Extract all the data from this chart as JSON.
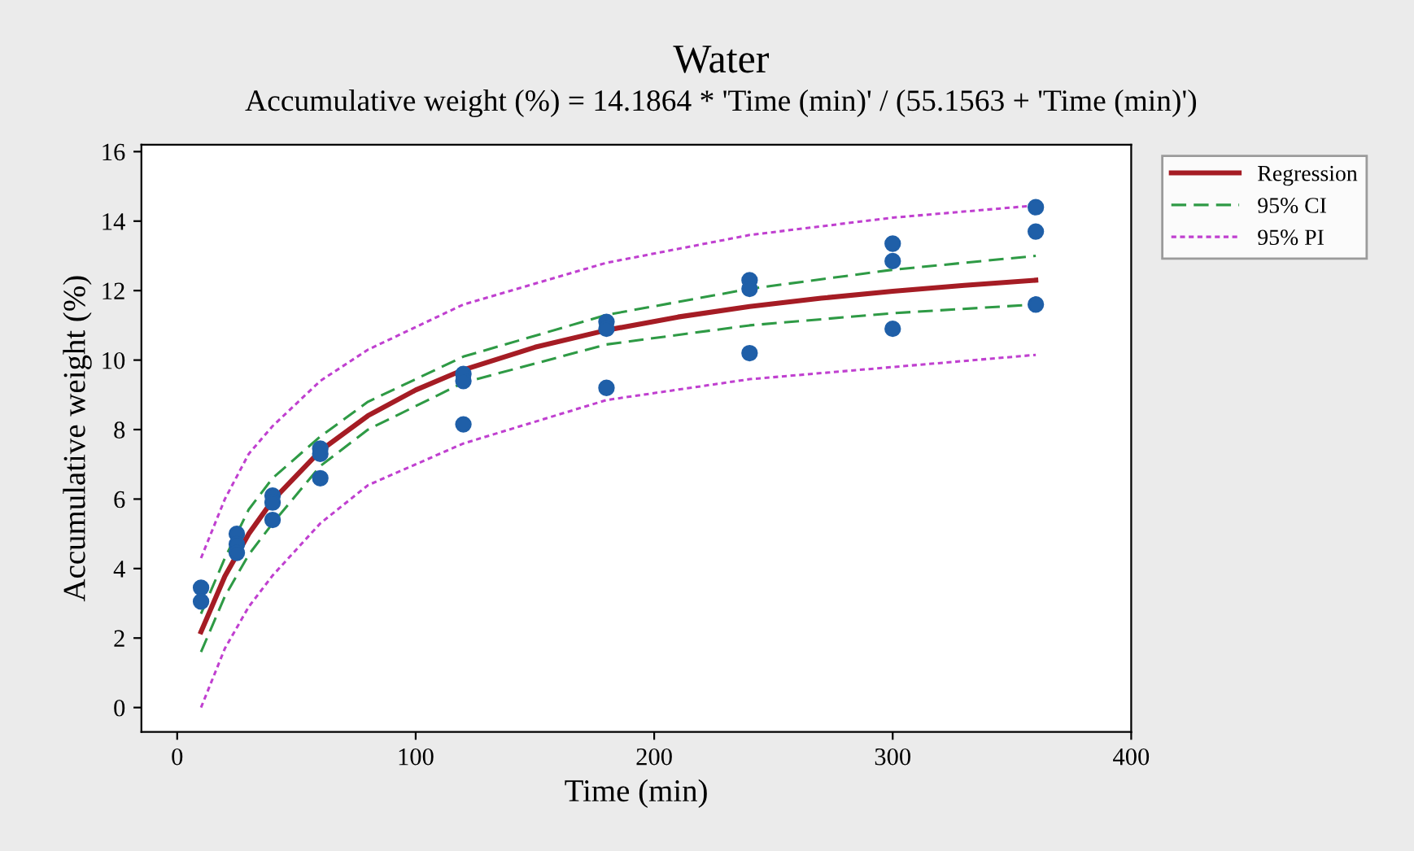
{
  "chart_data": {
    "type": "line",
    "title": "Water",
    "subtitle": "Accumulative weight (%) = 14.1864 * 'Time (min)' / (55.1563 + 'Time (min)')",
    "xlabel": "Time (min)",
    "ylabel": "Accumulative weight (%)",
    "xlim": [
      -15,
      400
    ],
    "ylim": [
      -0.7,
      16.2
    ],
    "xticks": [
      0,
      100,
      200,
      300,
      400
    ],
    "yticks": [
      0,
      2,
      4,
      6,
      8,
      10,
      12,
      14,
      16
    ],
    "grid": false,
    "legend": "right",
    "series": [
      {
        "type": "scatter",
        "color": "#1f5fa8",
        "marker": "circle",
        "x": [
          10,
          10,
          25,
          25,
          25,
          40,
          40,
          40,
          60,
          60,
          60,
          120,
          120,
          120,
          180,
          180,
          180,
          240,
          240,
          240,
          300,
          300,
          300,
          360,
          360,
          360
        ],
        "values": [
          3.45,
          3.05,
          5.0,
          4.7,
          4.45,
          6.1,
          5.9,
          5.4,
          7.45,
          7.3,
          6.6,
          9.6,
          9.4,
          8.15,
          11.1,
          10.9,
          9.2,
          12.3,
          12.05,
          10.2,
          13.35,
          12.85,
          10.9,
          14.4,
          13.7,
          11.6
        ]
      },
      {
        "name": "Regression",
        "color": "#a51c24",
        "line_style": "solid",
        "x": [
          10,
          20,
          30,
          40,
          60,
          80,
          100,
          120,
          150,
          180,
          210,
          240,
          270,
          300,
          330,
          360
        ],
        "values": [
          2.18,
          3.78,
          5.0,
          5.96,
          7.39,
          8.4,
          9.14,
          9.72,
          10.37,
          10.86,
          11.24,
          11.54,
          11.78,
          11.98,
          12.15,
          12.3
        ]
      },
      {
        "name": "95% CI",
        "color": "#2e9a45",
        "line_style": "dashed",
        "x": [
          10,
          20,
          30,
          40,
          60,
          80,
          120,
          180,
          240,
          300,
          360
        ],
        "values": [
          2.7,
          4.3,
          5.7,
          6.6,
          7.8,
          8.8,
          10.1,
          11.3,
          12.05,
          12.6,
          13.0
        ]
      },
      {
        "color": "#2e9a45",
        "line_style": "dashed",
        "x": [
          10,
          20,
          30,
          40,
          60,
          80,
          120,
          180,
          240,
          300,
          360
        ],
        "values": [
          1.6,
          3.2,
          4.4,
          5.3,
          6.95,
          8.0,
          9.35,
          10.45,
          11.0,
          11.35,
          11.6
        ]
      },
      {
        "name": "95% PI",
        "color": "#c040d0",
        "line_style": "dotted",
        "x": [
          10,
          20,
          30,
          40,
          60,
          80,
          120,
          180,
          240,
          300,
          360
        ],
        "values": [
          4.3,
          6.0,
          7.3,
          8.1,
          9.4,
          10.3,
          11.6,
          12.8,
          13.6,
          14.1,
          14.45
        ]
      },
      {
        "color": "#c040d0",
        "line_style": "dotted",
        "x": [
          10,
          20,
          30,
          40,
          60,
          80,
          120,
          180,
          240,
          300,
          360
        ],
        "values": [
          0.0,
          1.7,
          2.9,
          3.8,
          5.3,
          6.4,
          7.6,
          8.85,
          9.45,
          9.8,
          10.15
        ]
      }
    ]
  }
}
